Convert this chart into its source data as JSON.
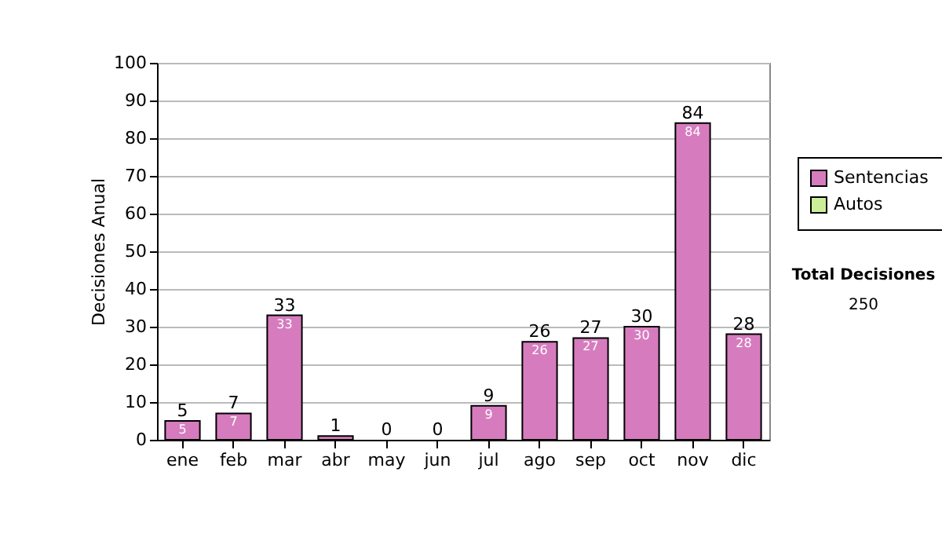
{
  "chart_data": {
    "type": "bar",
    "ylabel": "Decisiones Anual",
    "categories": [
      "ene",
      "feb",
      "mar",
      "abr",
      "may",
      "jun",
      "jul",
      "ago",
      "sep",
      "oct",
      "nov",
      "dic"
    ],
    "series": [
      {
        "name": "Sentencias",
        "color": "#d67cbe",
        "values": [
          5,
          7,
          33,
          1,
          0,
          0,
          9,
          26,
          27,
          30,
          84,
          28
        ],
        "value_labels": [
          "5",
          "7",
          "33",
          null,
          null,
          null,
          "9",
          "26",
          "27",
          "30",
          "84",
          "28"
        ]
      },
      {
        "name": "Autos",
        "color": "#ccee99",
        "values": [
          0,
          0,
          0,
          0,
          0,
          0,
          0,
          0,
          0,
          0,
          0,
          0
        ]
      }
    ],
    "totals": [
      "5",
      "7",
      "33",
      "1",
      "0",
      "0",
      "9",
      "26",
      "27",
      "30",
      "84",
      "28"
    ],
    "ylim": [
      0,
      100
    ],
    "yticks": [
      0,
      10,
      20,
      30,
      40,
      50,
      60,
      70,
      80,
      90,
      100
    ],
    "grid": "y",
    "legend": "right",
    "annotations": [
      "Total Decisiones",
      "250"
    ]
  }
}
